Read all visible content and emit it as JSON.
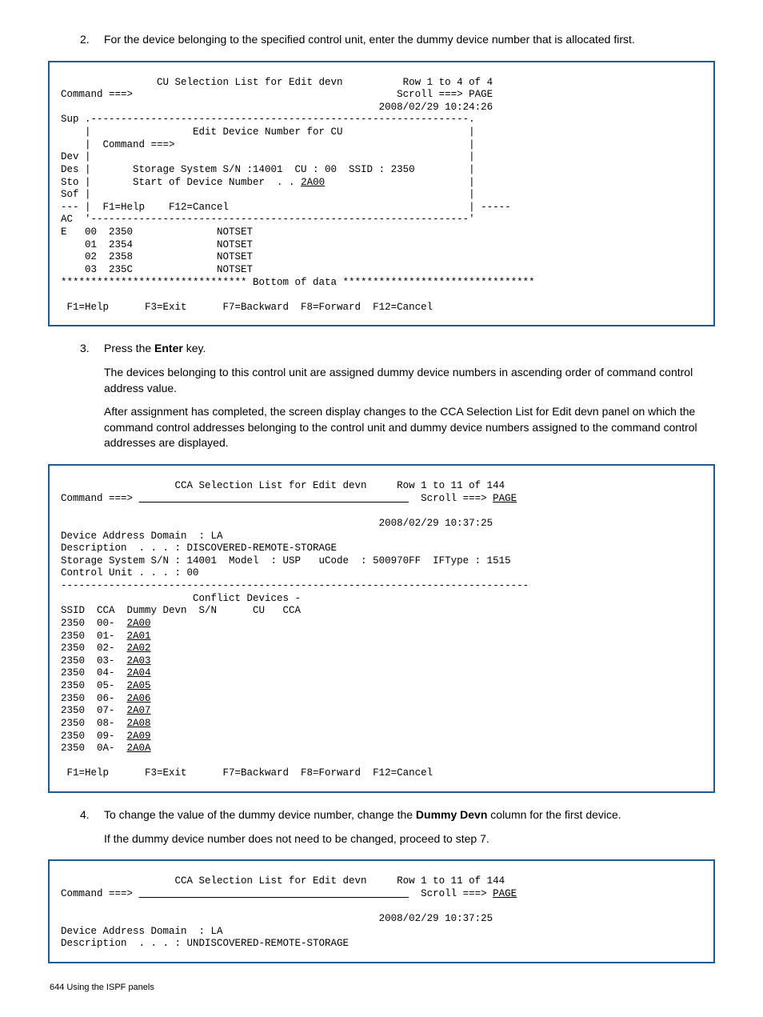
{
  "step2": {
    "text": "For the device belonging to the specified control unit, enter the dummy device number that is allocated first."
  },
  "panel1": {
    "title": "CU Selection List for Edit devn",
    "row_info": "Row 1 to 4 of 4",
    "command_label": "Command ===>",
    "scroll_label": "Scroll ===> PAGE",
    "timestamp": "2008/02/29 10:24:26",
    "sup": "Sup",
    "inner_title": "Edit Device Number for CU",
    "inner_command": "Command ===>",
    "dev": "Dev",
    "des": "Des",
    "sto": "Sto",
    "sof": "Sof",
    "ac": "AC",
    "e": "E",
    "storage_line": "Storage System S/N :14001  CU : 00  SSID : 2350",
    "start_line_prefix": "Start of Device Number  . . ",
    "start_value": "2A00",
    "inner_help": "F1=Help    F12=Cancel",
    "rows": [
      {
        "idx": "00",
        "val": "2350",
        "status": "NOTSET"
      },
      {
        "idx": "01",
        "val": "2354",
        "status": "NOTSET"
      },
      {
        "idx": "02",
        "val": "2358",
        "status": "NOTSET"
      },
      {
        "idx": "03",
        "val": "235C",
        "status": "NOTSET"
      }
    ],
    "bottom": "******************************* Bottom of data ********************************",
    "fkeys": " F1=Help      F3=Exit      F7=Backward  F8=Forward  F12=Cancel"
  },
  "step3": {
    "intro_pre": "Press the ",
    "intro_bold": "Enter",
    "intro_post": " key.",
    "p1": "The devices belonging to this control unit are assigned dummy device numbers in ascending order of command control address value.",
    "p2": "After assignment has completed, the screen display changes to the CCA Selection List for Edit devn panel on which the command control addresses belonging to the control unit and dummy device numbers assigned to the command control addresses are displayed."
  },
  "panel2": {
    "title": "CCA Selection List for Edit devn",
    "row_info": "Row 1 to 11 of 144",
    "command_label": "Command ===> ",
    "scroll_pre": "Scroll ===> ",
    "scroll_val": "PAGE",
    "timestamp": "2008/02/29 10:37:25",
    "domain": "Device Address Domain  : LA",
    "description": "Description  . . . : DISCOVERED-REMOTE-STORAGE",
    "storage": "Storage System S/N : 14001  Model  : USP   uCode  : 500970FF  IFType : 1515",
    "cu": "Control Unit . . . : 00",
    "conflict_header": "                      Conflict Devices -",
    "col_header": "SSID  CCA  Dummy Devn  S/N      CU   CCA",
    "rows": [
      {
        "ssid": "2350",
        "cca": "00-",
        "devn": "2A00"
      },
      {
        "ssid": "2350",
        "cca": "01-",
        "devn": "2A01"
      },
      {
        "ssid": "2350",
        "cca": "02-",
        "devn": "2A02"
      },
      {
        "ssid": "2350",
        "cca": "03-",
        "devn": "2A03"
      },
      {
        "ssid": "2350",
        "cca": "04-",
        "devn": "2A04"
      },
      {
        "ssid": "2350",
        "cca": "05-",
        "devn": "2A05"
      },
      {
        "ssid": "2350",
        "cca": "06-",
        "devn": "2A06"
      },
      {
        "ssid": "2350",
        "cca": "07-",
        "devn": "2A07"
      },
      {
        "ssid": "2350",
        "cca": "08-",
        "devn": "2A08"
      },
      {
        "ssid": "2350",
        "cca": "09-",
        "devn": "2A09"
      },
      {
        "ssid": "2350",
        "cca": "0A-",
        "devn": "2A0A"
      }
    ],
    "fkeys": " F1=Help      F3=Exit      F7=Backward  F8=Forward  F12=Cancel"
  },
  "step4": {
    "pre": "To change the value of the dummy device number, change the ",
    "bold": "Dummy Devn",
    "post": " column for the first device.",
    "p2": "If the dummy device number does not need to be changed, proceed to step 7."
  },
  "panel3": {
    "title": "CCA Selection List for Edit devn",
    "row_info": "Row 1 to 11 of 144",
    "command_label": "Command ===> ",
    "scroll_pre": "Scroll ===> ",
    "scroll_val": "PAGE",
    "timestamp": "2008/02/29 10:37:25",
    "domain": "Device Address Domain  : LA",
    "description": "Description  . . . : UNDISCOVERED-REMOTE-STORAGE"
  },
  "footer": "644  Using the ISPF panels"
}
